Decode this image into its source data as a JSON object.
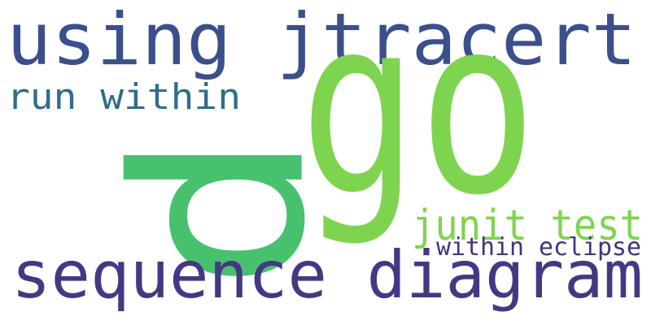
{
  "word_cloud": {
    "colors": {
      "background": "#ffffff",
      "navy": "#3b4f8c",
      "teal": "#2f6d8a",
      "green": "#48c16e",
      "lime": "#7fd44f",
      "purple": "#453883",
      "deep_purple": "#46327a"
    },
    "words": [
      {
        "text": "using jtracert",
        "color": "#3b4f8c",
        "rotated": false
      },
      {
        "text": "run within",
        "color": "#2f6d8a",
        "rotated": false
      },
      {
        "text": "p",
        "color": "#48c16e",
        "rotated": true
      },
      {
        "text": "go",
        "color": "#7fd44f",
        "rotated": false
      },
      {
        "text": "junit test",
        "color": "#7fd44f",
        "rotated": false
      },
      {
        "text": "within eclipse",
        "color": "#46327a",
        "rotated": false
      },
      {
        "text": "sequence diagram",
        "color": "#453883",
        "rotated": false
      }
    ]
  }
}
